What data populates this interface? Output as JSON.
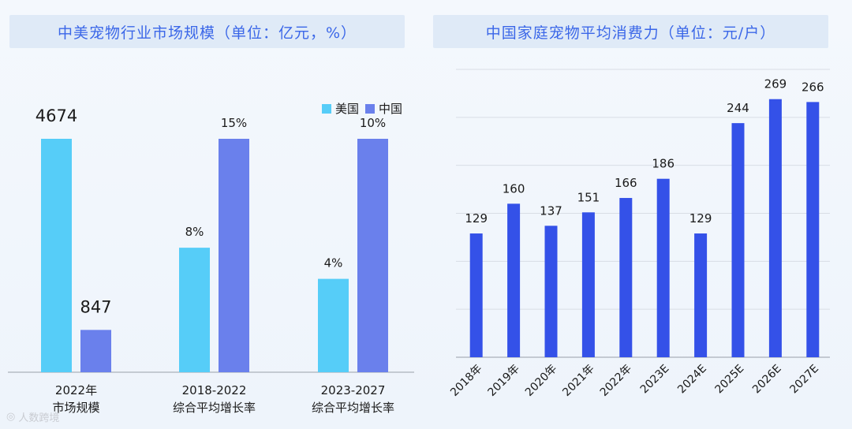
{
  "chart_data": [
    {
      "type": "bar",
      "title": "中美宠物行业市场规模（单位：亿元，%）",
      "categories": [
        "2022年\n市场规模",
        "2018-2022\n综合平均增长率",
        "2023-2027\n综合平均增长率"
      ],
      "series": [
        {
          "name": "美国",
          "values": [
            4674,
            8,
            4
          ],
          "labels": [
            "4674",
            "8%",
            "4%"
          ]
        },
        {
          "name": "中国",
          "values": [
            847,
            15,
            10
          ],
          "labels": [
            "847",
            "15%",
            "10%"
          ]
        }
      ],
      "legend": "top-right",
      "colors": {
        "美国": "#56cdf8",
        "中国": "#6a80ec"
      }
    },
    {
      "type": "bar",
      "title": "中国家庭宠物平均消费力（单位：元/户）",
      "categories": [
        "2018年",
        "2019年",
        "2020年",
        "2021年",
        "2022年",
        "2023E",
        "2024E",
        "2025E",
        "2026E",
        "2027E"
      ],
      "values": [
        129,
        160,
        137,
        151,
        166,
        186,
        129,
        244,
        269,
        266
      ],
      "ylim": [
        0,
        300
      ],
      "grid": true,
      "color": "#3451e8"
    }
  ],
  "footer": {
    "logo_text": "人数跨境"
  }
}
